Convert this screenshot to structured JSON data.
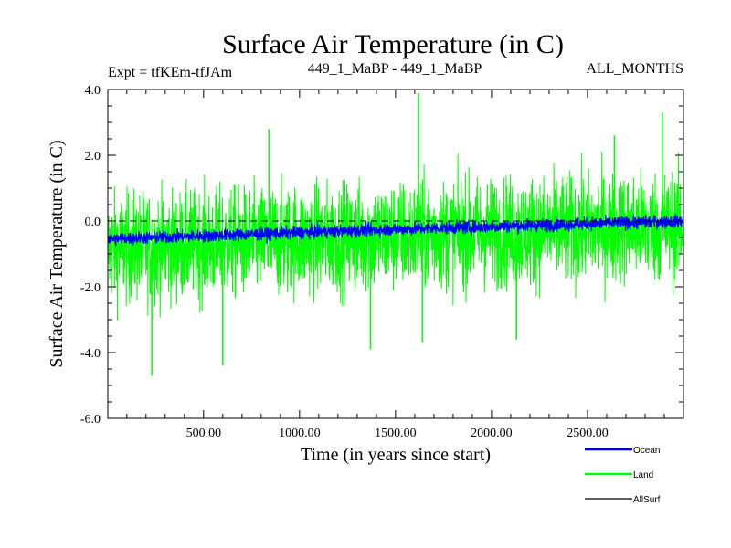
{
  "chart_data": {
    "type": "line",
    "title": "Surface Air Temperature (in C)",
    "subtitle_left": "Expt = tfKEm-tfJAm",
    "subtitle_center": "449_1_MaBP - 449_1_MaBP",
    "subtitle_right": "ALL_MONTHS",
    "xlabel": "Time (in years since start)",
    "ylabel": "Surface Air Temperature (in C)",
    "xlim": [
      1,
      3000
    ],
    "ylim": [
      -6.0,
      4.0
    ],
    "x_ticks": [
      500,
      1000,
      1500,
      2000,
      2500
    ],
    "x_tick_labels": [
      "500.00",
      "1000.00",
      "1500.00",
      "2000.00",
      "2500.00"
    ],
    "y_ticks": [
      -6,
      -4,
      -2,
      0,
      2,
      4
    ],
    "y_tick_labels": [
      "-6.0",
      "-4.0",
      "-2.0",
      "0.0",
      "2.0",
      "4.0"
    ],
    "reference_line": {
      "y": 0.0,
      "style": "dashed",
      "color": "#000000"
    },
    "legend_position": "bottom-right",
    "series": [
      {
        "name": "Land",
        "color": "#00ff00",
        "trend": {
          "x": [
            1,
            1500,
            3000
          ],
          "y": [
            -0.85,
            -0.45,
            -0.15
          ]
        },
        "spread": 1.4,
        "extremes": [
          {
            "x": 230,
            "y": -4.7
          },
          {
            "x": 600,
            "y": -4.4
          },
          {
            "x": 840,
            "y": 2.8
          },
          {
            "x": 1370,
            "y": -3.9
          },
          {
            "x": 1620,
            "y": 3.9
          },
          {
            "x": 1640,
            "y": -3.7
          },
          {
            "x": 2890,
            "y": 3.3
          },
          {
            "x": 2130,
            "y": -3.6
          },
          {
            "x": 2640,
            "y": 2.6
          }
        ]
      },
      {
        "name": "Ocean",
        "color": "#0000ff",
        "trend": {
          "x": [
            1,
            1500,
            3000
          ],
          "y": [
            -0.55,
            -0.25,
            0.0
          ]
        },
        "spread": 0.14
      },
      {
        "name": "AllSurf",
        "color": "#000000"
      }
    ]
  }
}
